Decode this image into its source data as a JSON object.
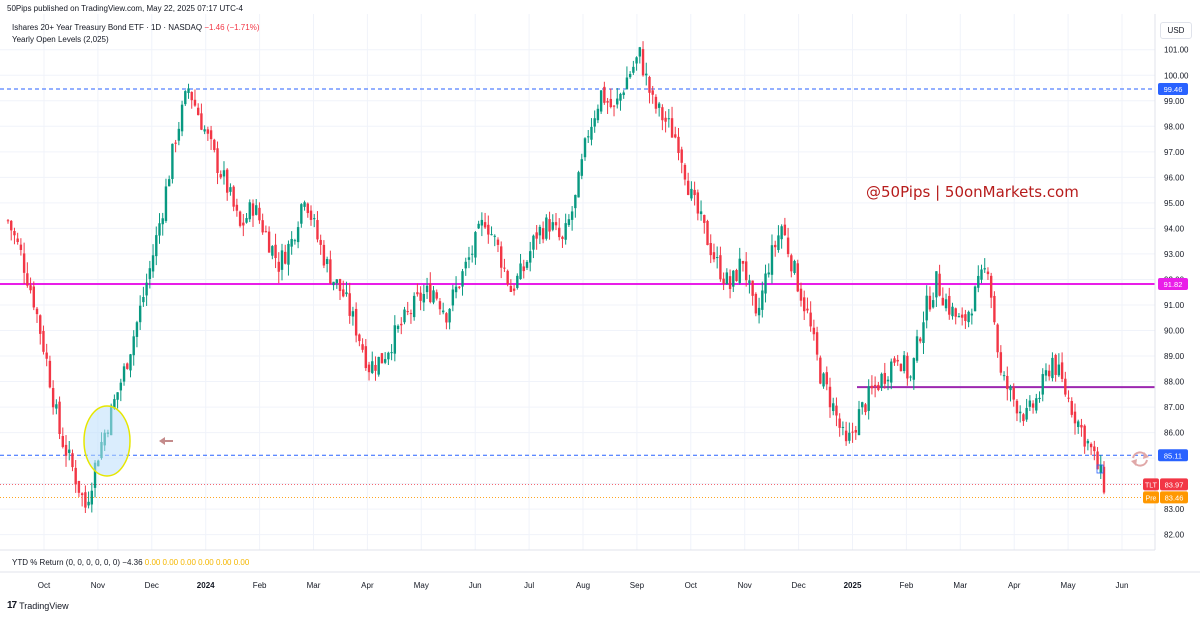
{
  "header": {
    "published": "50Pips published on TradingView.com, May 22, 2025 07:17 UTC-4"
  },
  "legend": {
    "symbol": "Ishares 20+ Year Treasury Bond ETF · 1D · NASDAQ",
    "change": "−1.46 (−1.71%)",
    "indicator": "Yearly Open Levels (2,025)"
  },
  "currency_button": "USD",
  "watermark": "@50Pips | 50onMarkets.com",
  "bottom_indicator": {
    "label": "YTD % Return (0, 0, 0, 0, 0, 0)",
    "value": "−4.36",
    "zeros": "0.00  0.00  0.00  0.00  0.00  0.00"
  },
  "footer": {
    "brand": "TradingView"
  },
  "colors": {
    "up": "#089981",
    "down": "#f23645",
    "magenta_level": "#e91ee8",
    "purple_level": "#9c27b0",
    "dashed_level": "#2962ff",
    "tlt_tag": "#f23645",
    "pre_tag": "#ff9800"
  },
  "chart_data": {
    "type": "candlestick",
    "x_labels": [
      "Oct",
      "Nov",
      "Dec",
      "2024",
      "Feb",
      "Mar",
      "Apr",
      "May",
      "Jun",
      "Jul",
      "Aug",
      "Sep",
      "Oct",
      "Nov",
      "Dec",
      "2025",
      "Feb",
      "Mar",
      "Apr",
      "May",
      "Jun"
    ],
    "y_ticks": [
      "82.00",
      "83.00",
      "84.00",
      "85.00",
      "86.00",
      "87.00",
      "88.00",
      "89.00",
      "90.00",
      "91.00",
      "92.00",
      "93.00",
      "94.00",
      "95.00",
      "96.00",
      "97.00",
      "98.00",
      "99.00",
      "100.00",
      "101.00"
    ],
    "ylim": [
      81.4,
      102.4
    ],
    "levels": [
      {
        "label": "99.46",
        "value": 99.46,
        "style": "dashed",
        "color": "#2962ff"
      },
      {
        "label": "91.82",
        "value": 91.82,
        "style": "solid",
        "color": "#e91ee8"
      },
      {
        "label": "85.11",
        "value": 85.11,
        "style": "dashed",
        "color": "#2962ff"
      },
      {
        "label": "",
        "value": 87.78,
        "style": "solid",
        "color": "#9c27b0"
      }
    ],
    "last_price": {
      "name": "TLT",
      "value": 83.97,
      "label": "83.97"
    },
    "pre_price": {
      "name": "Pre",
      "value": 83.46,
      "label": "83.46"
    },
    "series_closes_weekly": [
      94.3,
      93.0,
      91.2,
      88.8,
      86.0,
      84.6,
      83.1,
      85.2,
      86.8,
      88.4,
      90.3,
      92.4,
      94.8,
      97.6,
      99.5,
      98.2,
      96.8,
      95.6,
      94.0,
      94.9,
      93.8,
      92.6,
      93.5,
      95.4,
      93.6,
      92.2,
      91.4,
      90.1,
      88.6,
      88.9,
      89.8,
      90.6,
      91.3,
      91.6,
      90.7,
      91.9,
      93.1,
      94.4,
      93.2,
      91.6,
      92.4,
      93.8,
      94.2,
      93.4,
      95.1,
      97.8,
      99.3,
      98.6,
      99.9,
      100.8,
      98.9,
      98.2,
      97.4,
      95.2,
      93.9,
      92.6,
      91.7,
      92.8,
      90.3,
      92.6,
      94.1,
      92.3,
      90.6,
      88.3,
      87.0,
      85.4,
      86.7,
      87.6,
      88.3,
      89.1,
      88.1,
      90.6,
      91.9,
      90.9,
      90.2,
      91.4,
      92.6,
      88.2,
      87.3,
      86.6,
      87.5,
      88.9,
      87.6,
      86.4,
      85.3,
      83.97
    ]
  }
}
